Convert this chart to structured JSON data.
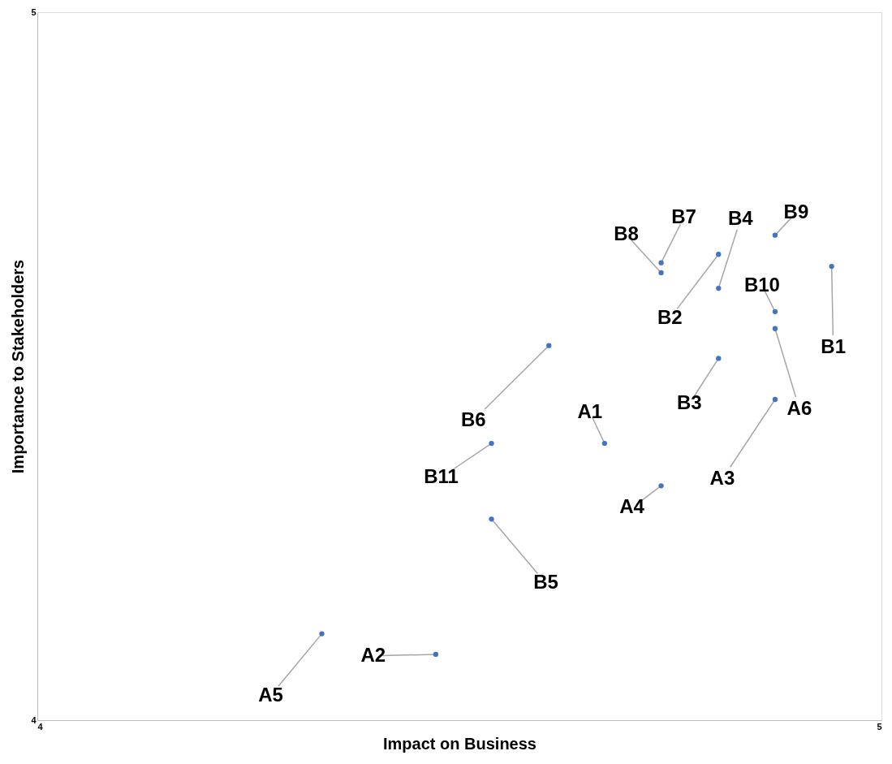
{
  "chart_data": {
    "type": "scatter",
    "xlabel": "Impact on Business",
    "ylabel": "Importance to Stakeholders",
    "x": [
      4.337,
      4.472,
      4.538,
      4.538,
      4.606,
      4.672,
      4.739,
      4.739,
      4.739,
      4.807,
      4.807,
      4.807,
      4.874,
      4.874,
      4.874,
      4.874,
      4.941
    ],
    "series": [
      {
        "color": "#4472c4",
        "values": [
          4.122,
          4.093,
          4.284,
          4.391,
          4.529,
          4.391,
          4.331,
          4.632,
          4.646,
          4.658,
          4.61,
          4.511,
          4.685,
          4.577,
          4.553,
          4.453,
          4.641
        ]
      }
    ],
    "marker": "circle",
    "xlim": [
      4,
      5
    ],
    "ylim": [
      4,
      5
    ],
    "xticks": [
      {
        "value": 4,
        "label": "4"
      },
      {
        "value": 5,
        "label": "5"
      }
    ],
    "yticks": [
      {
        "value": 4,
        "label": "4"
      },
      {
        "value": 5,
        "label": "5"
      }
    ],
    "grid": false,
    "annotations": [
      {
        "text": "A5",
        "x": 4.337,
        "y": 4.122
      },
      {
        "text": "A2",
        "x": 4.472,
        "y": 4.093
      },
      {
        "text": "B5",
        "x": 4.538,
        "y": 4.284
      },
      {
        "text": "B11",
        "x": 4.538,
        "y": 4.391
      },
      {
        "text": "B6",
        "x": 4.606,
        "y": 4.529
      },
      {
        "text": "A1",
        "x": 4.672,
        "y": 4.391
      },
      {
        "text": "A4",
        "x": 4.739,
        "y": 4.331
      },
      {
        "text": "B8",
        "x": 4.739,
        "y": 4.632
      },
      {
        "text": "B7",
        "x": 4.739,
        "y": 4.646
      },
      {
        "text": "B2",
        "x": 4.807,
        "y": 4.658
      },
      {
        "text": "B4",
        "x": 4.807,
        "y": 4.61
      },
      {
        "text": "B3",
        "x": 4.807,
        "y": 4.511
      },
      {
        "text": "B9",
        "x": 4.874,
        "y": 4.685
      },
      {
        "text": "B10",
        "x": 4.874,
        "y": 4.577
      },
      {
        "text": "A6",
        "x": 4.874,
        "y": 4.553
      },
      {
        "text": "A3",
        "x": 4.874,
        "y": 4.453
      },
      {
        "text": "B1",
        "x": 4.941,
        "y": 4.641
      }
    ]
  }
}
